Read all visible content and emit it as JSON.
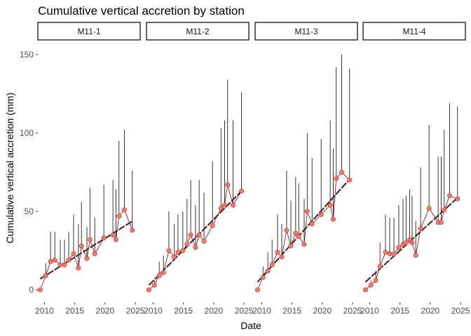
{
  "chart_data": {
    "type": "scatter",
    "title": "Cumulative vertical accretion by station",
    "xlabel": "Date",
    "ylabel": "Cumulative vertical accretion (mm)",
    "xlim": [
      2008.9,
      2025.8
    ],
    "ylim": [
      -8,
      158
    ],
    "x_ticks": [
      2010,
      2015,
      2020,
      2025
    ],
    "y_ticks": [
      0,
      50,
      100,
      150
    ],
    "grid": false,
    "colors": {
      "point": "#f8766d",
      "point_stroke": "#8b1a1a",
      "connector": "#8b0000",
      "trend": "#4d1a1a",
      "errorbar": "#000000"
    },
    "panels": [
      {
        "label": "M11-1",
        "x": [
          2009.3,
          2010.2,
          2011.0,
          2011.7,
          2012.6,
          2013.3,
          2014.0,
          2014.8,
          2015.6,
          2016.1,
          2017.0,
          2017.5,
          2018.3,
          2019.8,
          2021.3,
          2021.8,
          2022.3,
          2023.2,
          2024.5
        ],
        "y": [
          0,
          9,
          18,
          19,
          16,
          16,
          19,
          23,
          14,
          28,
          20,
          32,
          23,
          33,
          35,
          32,
          47,
          51,
          38
        ],
        "err_upper": [
          0,
          17,
          37,
          37,
          32,
          32,
          37,
          48,
          42,
          56,
          40,
          65,
          46,
          67,
          70,
          64,
          95,
          102,
          76
        ],
        "trend": [
          [
            2009.3,
            7
          ],
          [
            2024.6,
            44
          ]
        ]
      },
      {
        "label": "M11-2",
        "x": [
          2009.3,
          2010.2,
          2011.0,
          2011.7,
          2012.6,
          2013.5,
          2014.1,
          2014.9,
          2015.6,
          2016.2,
          2017.0,
          2017.6,
          2018.4,
          2019.8,
          2021.2,
          2021.8,
          2022.3,
          2023.2,
          2024.6
        ],
        "y": [
          0,
          3,
          9,
          11,
          25,
          21,
          24,
          25,
          29,
          35,
          27,
          35,
          31,
          41,
          52,
          54,
          67,
          54,
          63
        ],
        "err_upper": [
          0,
          6,
          18,
          22,
          50,
          42,
          48,
          50,
          58,
          70,
          54,
          70,
          62,
          82,
          103,
          108,
          134,
          108,
          126
        ],
        "trend": [
          [
            2009.3,
            3
          ],
          [
            2024.6,
            63
          ]
        ]
      },
      {
        "label": "M11-3",
        "x": [
          2009.3,
          2010.2,
          2011.0,
          2011.7,
          2012.6,
          2013.3,
          2014.1,
          2014.8,
          2015.6,
          2016.1,
          2017.0,
          2017.5,
          2018.3,
          2019.8,
          2021.3,
          2021.8,
          2022.3,
          2023.2,
          2024.5
        ],
        "y": [
          0,
          8,
          12,
          16,
          24,
          21,
          38,
          28,
          36,
          34,
          29,
          50,
          42,
          48,
          54,
          45,
          71,
          75,
          70
        ],
        "err_upper": [
          0,
          15,
          24,
          32,
          48,
          42,
          76,
          57,
          72,
          68,
          58,
          100,
          84,
          96,
          108,
          90,
          142,
          150,
          141
        ],
        "trend": [
          [
            2009.3,
            5
          ],
          [
            2024.6,
            71
          ]
        ]
      },
      {
        "label": "M11-4",
        "x": [
          2009.3,
          2010.2,
          2011.0,
          2011.7,
          2012.6,
          2013.3,
          2014.0,
          2014.8,
          2015.5,
          2016.0,
          2016.6,
          2017.0,
          2017.6,
          2018.4,
          2019.8,
          2021.3,
          2021.8,
          2022.3,
          2023.2,
          2024.5
        ],
        "y": [
          0,
          3,
          6,
          15,
          24,
          23,
          23,
          27,
          29,
          30,
          32,
          30,
          22,
          39,
          52,
          43,
          43,
          51,
          60,
          58
        ],
        "err_upper": [
          0,
          6,
          12,
          30,
          48,
          46,
          46,
          54,
          58,
          60,
          64,
          60,
          44,
          78,
          105,
          85,
          85,
          102,
          119,
          117
        ],
        "trend": [
          [
            2009.3,
            5
          ],
          [
            2024.6,
            59
          ]
        ]
      }
    ]
  }
}
